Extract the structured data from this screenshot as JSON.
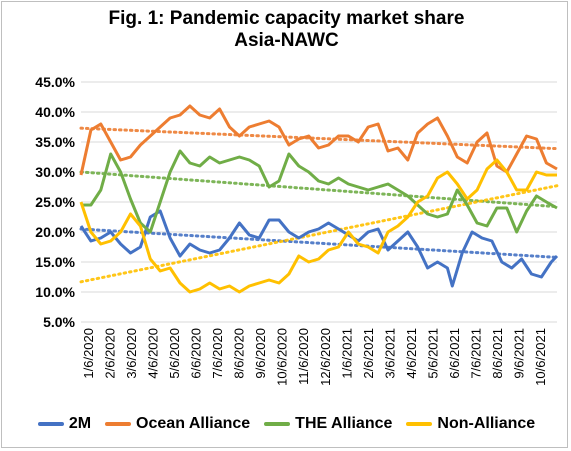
{
  "chart_data": {
    "type": "line",
    "title": "Fig. 1: Pandemic capacity market share",
    "subtitle": "Asia-NAWC",
    "xlabel": "",
    "ylabel": "",
    "ylim": [
      0.05,
      0.45
    ],
    "y_ticks": [
      "45.0%",
      "40.0%",
      "35.0%",
      "30.0%",
      "25.0%",
      "20.0%",
      "15.0%",
      "10.0%",
      "5.0%"
    ],
    "x_ticks": [
      "1/6/2020",
      "2/6/2020",
      "3/6/2020",
      "4/6/2020",
      "5/6/2020",
      "6/6/2020",
      "7/6/2020",
      "8/6/2020",
      "9/6/2020",
      "10/6/2020",
      "11/6/2020",
      "12/6/2020",
      "1/6/2021",
      "2/6/2021",
      "3/6/2021",
      "4/6/2021",
      "5/6/2021",
      "6/6/2021",
      "7/6/2021",
      "8/6/2021",
      "9/6/2021",
      "10/6/2021"
    ],
    "x_range": [
      "2020-01-06",
      "2021-11-09"
    ],
    "grid": "horizontal",
    "trendlines": "dotted linear, one per series",
    "legend_position": "bottom",
    "series": [
      {
        "name": "2M",
        "color": "#4472C4",
        "points": [
          [
            "2020-01-06",
            0.21
          ],
          [
            "2020-01-20",
            0.185
          ],
          [
            "2020-02-03",
            0.19
          ],
          [
            "2020-02-17",
            0.2
          ],
          [
            "2020-03-02",
            0.18
          ],
          [
            "2020-03-16",
            0.165
          ],
          [
            "2020-03-30",
            0.175
          ],
          [
            "2020-04-13",
            0.225
          ],
          [
            "2020-04-27",
            0.235
          ],
          [
            "2020-05-11",
            0.19
          ],
          [
            "2020-05-25",
            0.16
          ],
          [
            "2020-06-08",
            0.18
          ],
          [
            "2020-06-22",
            0.17
          ],
          [
            "2020-07-06",
            0.165
          ],
          [
            "2020-07-20",
            0.17
          ],
          [
            "2020-08-03",
            0.19
          ],
          [
            "2020-08-17",
            0.215
          ],
          [
            "2020-08-31",
            0.195
          ],
          [
            "2020-09-14",
            0.19
          ],
          [
            "2020-09-28",
            0.22
          ],
          [
            "2020-10-12",
            0.22
          ],
          [
            "2020-10-26",
            0.2
          ],
          [
            "2020-11-09",
            0.19
          ],
          [
            "2020-11-23",
            0.2
          ],
          [
            "2020-12-07",
            0.205
          ],
          [
            "2020-12-21",
            0.215
          ],
          [
            "2021-01-04",
            0.205
          ],
          [
            "2021-01-18",
            0.195
          ],
          [
            "2021-02-01",
            0.185
          ],
          [
            "2021-02-15",
            0.2
          ],
          [
            "2021-03-01",
            0.205
          ],
          [
            "2021-03-15",
            0.17
          ],
          [
            "2021-03-29",
            0.185
          ],
          [
            "2021-04-12",
            0.2
          ],
          [
            "2021-04-26",
            0.175
          ],
          [
            "2021-05-10",
            0.14
          ],
          [
            "2021-05-24",
            0.15
          ],
          [
            "2021-06-07",
            0.14
          ],
          [
            "2021-06-14",
            0.11
          ],
          [
            "2021-06-28",
            0.165
          ],
          [
            "2021-07-12",
            0.2
          ],
          [
            "2021-07-26",
            0.19
          ],
          [
            "2021-08-09",
            0.185
          ],
          [
            "2021-08-23",
            0.15
          ],
          [
            "2021-09-06",
            0.14
          ],
          [
            "2021-09-20",
            0.155
          ],
          [
            "2021-10-04",
            0.13
          ],
          [
            "2021-10-18",
            0.125
          ],
          [
            "2021-11-01",
            0.15
          ],
          [
            "2021-11-09",
            0.16
          ]
        ]
      },
      {
        "name": "Ocean Alliance",
        "color": "#ED7D31",
        "points": [
          [
            "2020-01-06",
            0.295
          ],
          [
            "2020-01-20",
            0.37
          ],
          [
            "2020-02-03",
            0.38
          ],
          [
            "2020-02-17",
            0.35
          ],
          [
            "2020-03-02",
            0.32
          ],
          [
            "2020-03-16",
            0.325
          ],
          [
            "2020-03-30",
            0.345
          ],
          [
            "2020-04-13",
            0.36
          ],
          [
            "2020-04-27",
            0.375
          ],
          [
            "2020-05-11",
            0.39
          ],
          [
            "2020-05-25",
            0.395
          ],
          [
            "2020-06-08",
            0.41
          ],
          [
            "2020-06-22",
            0.395
          ],
          [
            "2020-07-06",
            0.39
          ],
          [
            "2020-07-20",
            0.405
          ],
          [
            "2020-08-03",
            0.375
          ],
          [
            "2020-08-17",
            0.36
          ],
          [
            "2020-08-31",
            0.375
          ],
          [
            "2020-09-14",
            0.38
          ],
          [
            "2020-09-28",
            0.385
          ],
          [
            "2020-10-12",
            0.375
          ],
          [
            "2020-10-26",
            0.345
          ],
          [
            "2020-11-09",
            0.355
          ],
          [
            "2020-11-23",
            0.36
          ],
          [
            "2020-12-07",
            0.34
          ],
          [
            "2020-12-21",
            0.345
          ],
          [
            "2021-01-04",
            0.36
          ],
          [
            "2021-01-18",
            0.36
          ],
          [
            "2021-02-01",
            0.35
          ],
          [
            "2021-02-15",
            0.375
          ],
          [
            "2021-03-01",
            0.38
          ],
          [
            "2021-03-15",
            0.335
          ],
          [
            "2021-03-29",
            0.34
          ],
          [
            "2021-04-12",
            0.32
          ],
          [
            "2021-04-26",
            0.365
          ],
          [
            "2021-05-10",
            0.38
          ],
          [
            "2021-05-24",
            0.39
          ],
          [
            "2021-06-07",
            0.36
          ],
          [
            "2021-06-21",
            0.325
          ],
          [
            "2021-07-05",
            0.315
          ],
          [
            "2021-07-19",
            0.35
          ],
          [
            "2021-08-02",
            0.365
          ],
          [
            "2021-08-16",
            0.31
          ],
          [
            "2021-08-30",
            0.3
          ],
          [
            "2021-09-13",
            0.33
          ],
          [
            "2021-09-27",
            0.36
          ],
          [
            "2021-10-11",
            0.355
          ],
          [
            "2021-10-25",
            0.315
          ],
          [
            "2021-11-09",
            0.305
          ]
        ]
      },
      {
        "name": "THE Alliance",
        "color": "#70AD47",
        "points": [
          [
            "2020-01-06",
            0.245
          ],
          [
            "2020-01-20",
            0.245
          ],
          [
            "2020-02-03",
            0.27
          ],
          [
            "2020-02-17",
            0.33
          ],
          [
            "2020-03-02",
            0.3
          ],
          [
            "2020-03-16",
            0.255
          ],
          [
            "2020-03-30",
            0.215
          ],
          [
            "2020-04-13",
            0.2
          ],
          [
            "2020-04-27",
            0.25
          ],
          [
            "2020-05-11",
            0.3
          ],
          [
            "2020-05-25",
            0.335
          ],
          [
            "2020-06-08",
            0.315
          ],
          [
            "2020-06-22",
            0.31
          ],
          [
            "2020-07-06",
            0.325
          ],
          [
            "2020-07-20",
            0.315
          ],
          [
            "2020-08-03",
            0.32
          ],
          [
            "2020-08-17",
            0.325
          ],
          [
            "2020-08-31",
            0.32
          ],
          [
            "2020-09-14",
            0.31
          ],
          [
            "2020-09-28",
            0.275
          ],
          [
            "2020-10-12",
            0.285
          ],
          [
            "2020-10-26",
            0.33
          ],
          [
            "2020-11-09",
            0.31
          ],
          [
            "2020-11-23",
            0.3
          ],
          [
            "2020-12-07",
            0.285
          ],
          [
            "2020-12-21",
            0.28
          ],
          [
            "2021-01-04",
            0.29
          ],
          [
            "2021-01-18",
            0.28
          ],
          [
            "2021-02-01",
            0.275
          ],
          [
            "2021-02-15",
            0.27
          ],
          [
            "2021-03-01",
            0.275
          ],
          [
            "2021-03-15",
            0.28
          ],
          [
            "2021-03-29",
            0.27
          ],
          [
            "2021-04-12",
            0.26
          ],
          [
            "2021-04-26",
            0.245
          ],
          [
            "2021-05-10",
            0.23
          ],
          [
            "2021-05-24",
            0.225
          ],
          [
            "2021-06-07",
            0.23
          ],
          [
            "2021-06-21",
            0.27
          ],
          [
            "2021-07-05",
            0.245
          ],
          [
            "2021-07-19",
            0.215
          ],
          [
            "2021-08-02",
            0.21
          ],
          [
            "2021-08-16",
            0.24
          ],
          [
            "2021-08-30",
            0.24
          ],
          [
            "2021-09-13",
            0.2
          ],
          [
            "2021-09-27",
            0.235
          ],
          [
            "2021-10-11",
            0.26
          ],
          [
            "2021-10-25",
            0.25
          ],
          [
            "2021-11-09",
            0.24
          ]
        ]
      },
      {
        "name": "Non-Alliance",
        "color": "#FFC000",
        "points": [
          [
            "2020-01-06",
            0.25
          ],
          [
            "2020-01-20",
            0.2
          ],
          [
            "2020-02-03",
            0.18
          ],
          [
            "2020-02-17",
            0.185
          ],
          [
            "2020-03-02",
            0.2
          ],
          [
            "2020-03-16",
            0.23
          ],
          [
            "2020-03-30",
            0.21
          ],
          [
            "2020-04-13",
            0.155
          ],
          [
            "2020-04-27",
            0.135
          ],
          [
            "2020-05-11",
            0.14
          ],
          [
            "2020-05-25",
            0.115
          ],
          [
            "2020-06-08",
            0.1
          ],
          [
            "2020-06-22",
            0.105
          ],
          [
            "2020-07-06",
            0.115
          ],
          [
            "2020-07-20",
            0.105
          ],
          [
            "2020-08-03",
            0.11
          ],
          [
            "2020-08-17",
            0.1
          ],
          [
            "2020-08-31",
            0.11
          ],
          [
            "2020-09-14",
            0.115
          ],
          [
            "2020-09-28",
            0.12
          ],
          [
            "2020-10-12",
            0.115
          ],
          [
            "2020-10-26",
            0.13
          ],
          [
            "2020-11-09",
            0.16
          ],
          [
            "2020-11-23",
            0.15
          ],
          [
            "2020-12-07",
            0.155
          ],
          [
            "2020-12-21",
            0.17
          ],
          [
            "2021-01-04",
            0.175
          ],
          [
            "2021-01-18",
            0.2
          ],
          [
            "2021-02-01",
            0.18
          ],
          [
            "2021-02-15",
            0.175
          ],
          [
            "2021-03-01",
            0.165
          ],
          [
            "2021-03-15",
            0.2
          ],
          [
            "2021-03-29",
            0.21
          ],
          [
            "2021-04-12",
            0.225
          ],
          [
            "2021-04-26",
            0.25
          ],
          [
            "2021-05-10",
            0.26
          ],
          [
            "2021-05-24",
            0.29
          ],
          [
            "2021-06-07",
            0.3
          ],
          [
            "2021-06-21",
            0.28
          ],
          [
            "2021-07-05",
            0.255
          ],
          [
            "2021-07-19",
            0.27
          ],
          [
            "2021-08-02",
            0.305
          ],
          [
            "2021-08-16",
            0.32
          ],
          [
            "2021-08-30",
            0.3
          ],
          [
            "2021-09-13",
            0.27
          ],
          [
            "2021-09-27",
            0.27
          ],
          [
            "2021-10-11",
            0.3
          ],
          [
            "2021-10-25",
            0.295
          ],
          [
            "2021-11-09",
            0.295
          ]
        ]
      }
    ]
  }
}
